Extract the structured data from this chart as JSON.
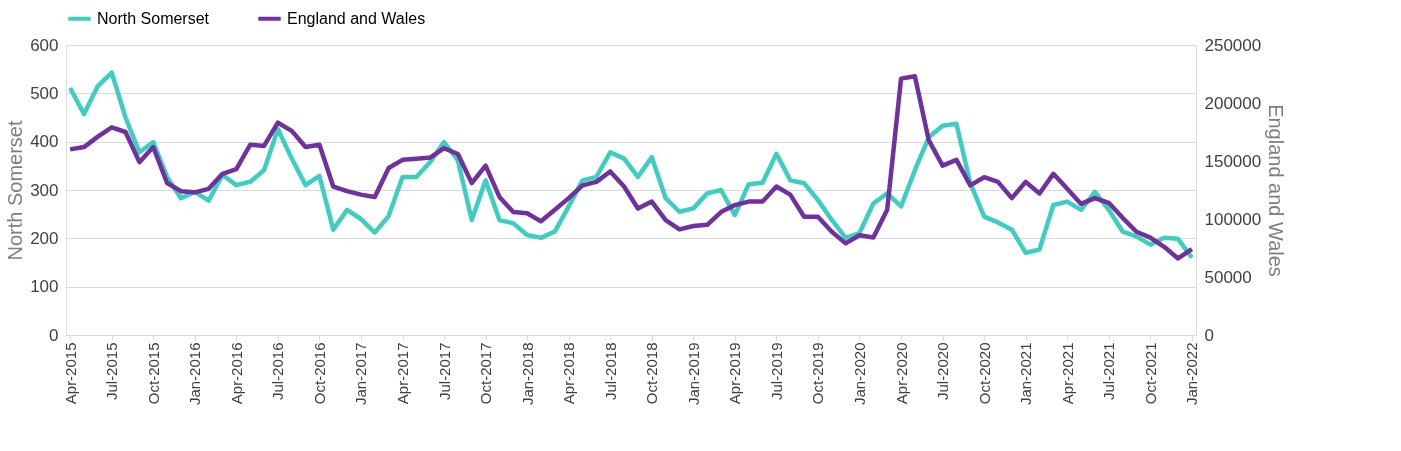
{
  "chart_data": {
    "type": "line",
    "categories": [
      "Apr-2015",
      null,
      null,
      "Jul-2015",
      null,
      null,
      "Oct-2015",
      null,
      null,
      "Jan-2016",
      null,
      null,
      "Apr-2016",
      null,
      null,
      "Jul-2016",
      null,
      null,
      "Oct-2016",
      null,
      null,
      "Jan-2017",
      null,
      null,
      "Apr-2017",
      null,
      null,
      "Jul-2017",
      null,
      null,
      "Oct-2017",
      null,
      null,
      "Jan-2018",
      null,
      null,
      "Apr-2018",
      null,
      null,
      "Jul-2018",
      null,
      null,
      "Oct-2018",
      null,
      null,
      "Jan-2019",
      null,
      null,
      "Apr-2019",
      null,
      null,
      "Jul-2019",
      null,
      null,
      "Oct-2019",
      null,
      null,
      "Jan-2020",
      null,
      null,
      "Apr-2020",
      null,
      null,
      "Jul-2020",
      null,
      null,
      "Oct-2020",
      null,
      null,
      "Jan-2021",
      null,
      null,
      "Apr-2021",
      null,
      null,
      "Jul-2021",
      null,
      null,
      "Oct-2021",
      null,
      null,
      "Jan-2022"
    ],
    "series": [
      {
        "name": "North Somerset",
        "color": "#3ccfc0",
        "values": [
          511,
          457,
          515,
          543,
          450,
          378,
          399,
          327,
          283,
          296,
          278,
          331,
          310,
          317,
          341,
          426,
          365,
          310,
          329,
          218,
          259,
          240,
          212,
          246,
          327,
          327,
          358,
          399,
          361,
          238,
          320,
          238,
          231,
          207,
          201,
          214,
          266,
          320,
          327,
          378,
          365,
          327,
          368,
          283,
          255,
          262,
          293,
          300,
          248,
          312,
          315,
          375,
          320,
          314,
          279,
          238,
          201,
          211,
          272,
          293,
          266,
          341,
          409,
          433,
          437,
          314,
          245,
          233,
          218,
          170,
          177,
          269,
          276,
          259,
          296,
          259,
          214,
          204,
          187,
          201,
          199,
          160
        ]
      },
      {
        "name": "England and Wales",
        "color": "#7030a0",
        "axis": "y2",
        "values": [
          160000,
          162000,
          171000,
          179000,
          175000,
          149000,
          162000,
          131000,
          124000,
          123000,
          126000,
          139000,
          143000,
          164000,
          163000,
          183000,
          176000,
          162000,
          164000,
          128000,
          124000,
          121000,
          119000,
          144000,
          151000,
          152000,
          153000,
          161000,
          156000,
          131000,
          146000,
          119000,
          106000,
          105000,
          98000,
          108000,
          118000,
          129000,
          132000,
          141000,
          128000,
          109000,
          115000,
          99000,
          91000,
          94000,
          95000,
          106000,
          112000,
          115000,
          115000,
          128000,
          121000,
          102000,
          102000,
          89000,
          79000,
          86000,
          84000,
          108000,
          221000,
          223000,
          168000,
          146000,
          151000,
          129000,
          136000,
          132000,
          118000,
          132000,
          122000,
          139000,
          126000,
          113000,
          118000,
          114000,
          101000,
          89000,
          84000,
          76000,
          66000,
          74000
        ]
      }
    ],
    "ylabel": "North Somerset",
    "y2label": "England and Wales",
    "ylim": [
      0,
      600
    ],
    "yticks": [
      0,
      100,
      200,
      300,
      400,
      500,
      600
    ],
    "y2lim": [
      0,
      250000
    ],
    "y2ticks": [
      0,
      {
        "value": 50000,
        "label": "50000"
      },
      {
        "value": 100000,
        "label": "100000"
      },
      {
        "value": 150000,
        "label": "150000"
      },
      {
        "value": 200000,
        "label": "200000"
      },
      {
        "value": 250000,
        "label": "250000"
      }
    ],
    "grid": "y",
    "legend": "top",
    "line_style": "solid"
  }
}
